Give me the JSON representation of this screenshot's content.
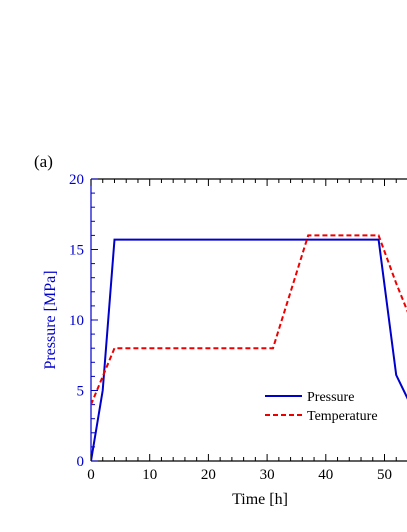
{
  "panel_label": "(a)",
  "chart_data": {
    "type": "line",
    "xlabel": "Time [h]",
    "ylabel": "Pressure [MPa]",
    "xlim": [
      0,
      55
    ],
    "ylim": [
      0,
      20
    ],
    "x_ticks": [
      0,
      10,
      20,
      30,
      40,
      50
    ],
    "y_ticks": [
      0,
      5,
      10,
      15,
      20
    ],
    "x_tick_labels": [
      "0",
      "10",
      "20",
      "30",
      "40",
      "50"
    ],
    "y_tick_labels": [
      "0",
      "5",
      "10",
      "15",
      "20"
    ],
    "x_minor_step": 2,
    "y_minor_step": 1,
    "legend_position": "bottom-right",
    "series": [
      {
        "name": "Pressure",
        "color": "#0000cc",
        "style": "solid",
        "points": [
          [
            0,
            0
          ],
          [
            2,
            5
          ],
          [
            4,
            15.7
          ],
          [
            49,
            15.7
          ],
          [
            52,
            6.1
          ],
          [
            55,
            3.5
          ]
        ]
      },
      {
        "name": "Temperature",
        "color": "#ee0000",
        "style": "dashed",
        "points": [
          [
            0,
            4
          ],
          [
            4,
            8
          ],
          [
            31,
            8
          ],
          [
            37,
            16
          ],
          [
            49,
            16
          ],
          [
            52,
            12.6
          ],
          [
            55,
            9.5
          ]
        ]
      }
    ],
    "left_axis_color": "#0000cc"
  }
}
